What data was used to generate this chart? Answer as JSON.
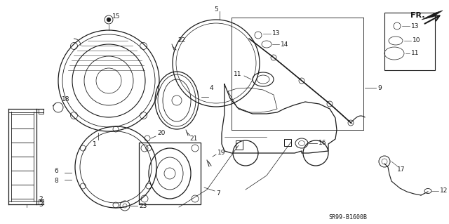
{
  "bg_color": "#ffffff",
  "line_color": "#1a1a1a",
  "text_color": "#1a1a1a",
  "diagram_code": "SR99-B1600B",
  "figsize": [
    6.4,
    3.19
  ],
  "dpi": 100,
  "xlim": [
    0,
    640
  ],
  "ylim": [
    0,
    319
  ]
}
